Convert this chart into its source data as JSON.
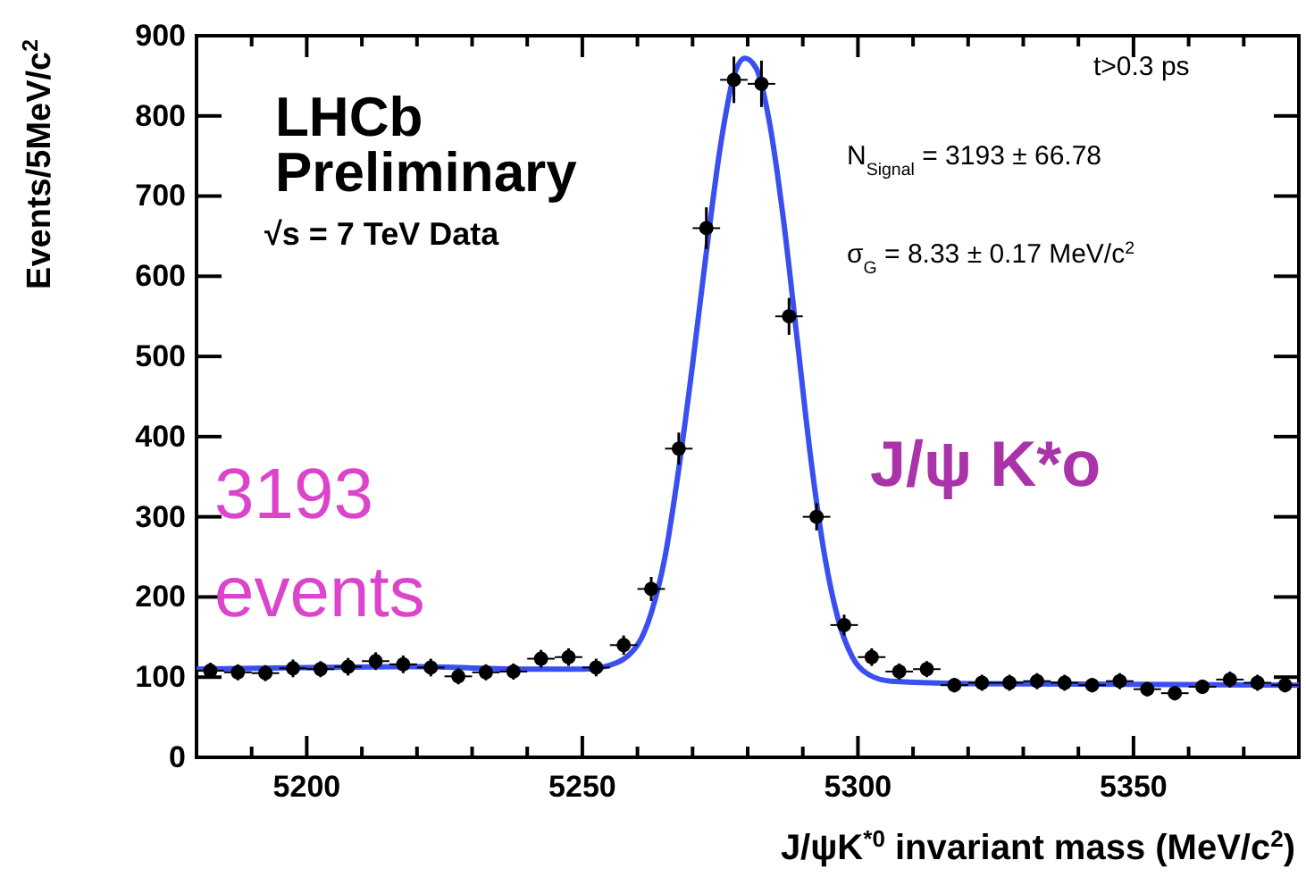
{
  "chart_data": {
    "type": "scatter",
    "xlabel": "J/ψK$^{*0}$ invariant mass (MeV/c$^{2}$)",
    "ylabel": "Events/5MeV/c$^{2}$",
    "annotations": [
      "LHCb",
      "Preliminary",
      "√s = 7 TeV Data",
      "t>0.3 ps",
      "N$_{Signal}$ = 3193 ± 66.78",
      "σ$_{G}$ = 8.33 ± 0.17 MeV/c$^{2}$",
      "3193",
      "events",
      "J/ψ K*o"
    ],
    "xlim": [
      5180,
      5380
    ],
    "ylim": [
      0,
      900
    ],
    "xticks": [
      {
        "value": 5190,
        "label": null
      },
      5200,
      {
        "value": 5210,
        "label": null
      },
      {
        "value": 5220,
        "label": null
      },
      {
        "value": 5230,
        "label": null
      },
      {
        "value": 5240,
        "label": null
      },
      5250,
      {
        "value": 5260,
        "label": null
      },
      {
        "value": 5270,
        "label": null
      },
      {
        "value": 5280,
        "label": null
      },
      {
        "value": 5290,
        "label": null
      },
      5300,
      {
        "value": 5310,
        "label": null
      },
      {
        "value": 5320,
        "label": null
      },
      {
        "value": 5330,
        "label": null
      },
      {
        "value": 5340,
        "label": null
      },
      5350,
      {
        "value": 5360,
        "label": null
      },
      {
        "value": 5370,
        "label": null
      }
    ],
    "yticks": [
      0,
      100,
      200,
      300,
      400,
      500,
      600,
      700,
      800,
      900
    ],
    "marker": "circle",
    "series": [
      {
        "type": "scatter",
        "color": "#000000",
        "x": [
          5182.5,
          5187.5,
          5192.5,
          5197.5,
          5202.5,
          5207.5,
          5212.5,
          5217.5,
          5222.5,
          5227.5,
          5232.5,
          5237.5,
          5242.5,
          5247.5,
          5252.5,
          5257.5,
          5262.5,
          5267.5,
          5272.5,
          5277.5,
          5282.5,
          5287.5,
          5292.5,
          5297.5,
          5302.5,
          5307.5,
          5312.5,
          5317.5,
          5322.5,
          5327.5,
          5332.5,
          5337.5,
          5342.5,
          5347.5,
          5352.5,
          5357.5,
          5362.5,
          5367.5,
          5372.5,
          5377.5
        ],
        "values": [
          108,
          106,
          105,
          111,
          110,
          113,
          120,
          116,
          112,
          101,
          106,
          107,
          123,
          125,
          112,
          140,
          210,
          385,
          660,
          845,
          840,
          550,
          300,
          165,
          125,
          107,
          110,
          90,
          93,
          93,
          95,
          93,
          90,
          95,
          85,
          80,
          88,
          97,
          93,
          90
        ],
        "errors": [
          10,
          10,
          10,
          11,
          10,
          11,
          11,
          11,
          11,
          10,
          10,
          10,
          11,
          11,
          11,
          12,
          15,
          20,
          26,
          29,
          29,
          23,
          17,
          13,
          11,
          10,
          10,
          9,
          10,
          10,
          10,
          10,
          9,
          10,
          9,
          9,
          9,
          10,
          10,
          9
        ],
        "xerrors": [
          2.5,
          2.5,
          2.5,
          2.5,
          2.5,
          2.5,
          2.5,
          2.5,
          2.5,
          2.5,
          2.5,
          2.5,
          2.5,
          2.5,
          2.5,
          2.5,
          2.5,
          2.5,
          2.5,
          2.5,
          2.5,
          2.5,
          2.5,
          2.5,
          2.5,
          2.5,
          2.5,
          2.5,
          2.5,
          2.5,
          2.5,
          2.5,
          2.5,
          2.5,
          2.5,
          2.5,
          2.5,
          2.5,
          2.5,
          2.5
        ]
      },
      {
        "type": "line",
        "color": "#3a4ff0",
        "marker": "none",
        "line_style": "solid",
        "x": [
          5180,
          5200,
          5220,
          5240,
          5250,
          5255,
          5260,
          5262.5,
          5265,
          5267.5,
          5270,
          5272.5,
          5275,
          5277.5,
          5279.5,
          5281.5,
          5284,
          5286.5,
          5289,
          5291.5,
          5294,
          5296.5,
          5299,
          5302,
          5306,
          5320,
          5350,
          5380
        ],
        "values": [
          110,
          112,
          113,
          110,
          110,
          115,
          140,
          180,
          250,
          360,
          490,
          630,
          760,
          850,
          872,
          860,
          790,
          670,
          520,
          370,
          250,
          170,
          125,
          103,
          95,
          92,
          91,
          90
        ]
      }
    ]
  }
}
